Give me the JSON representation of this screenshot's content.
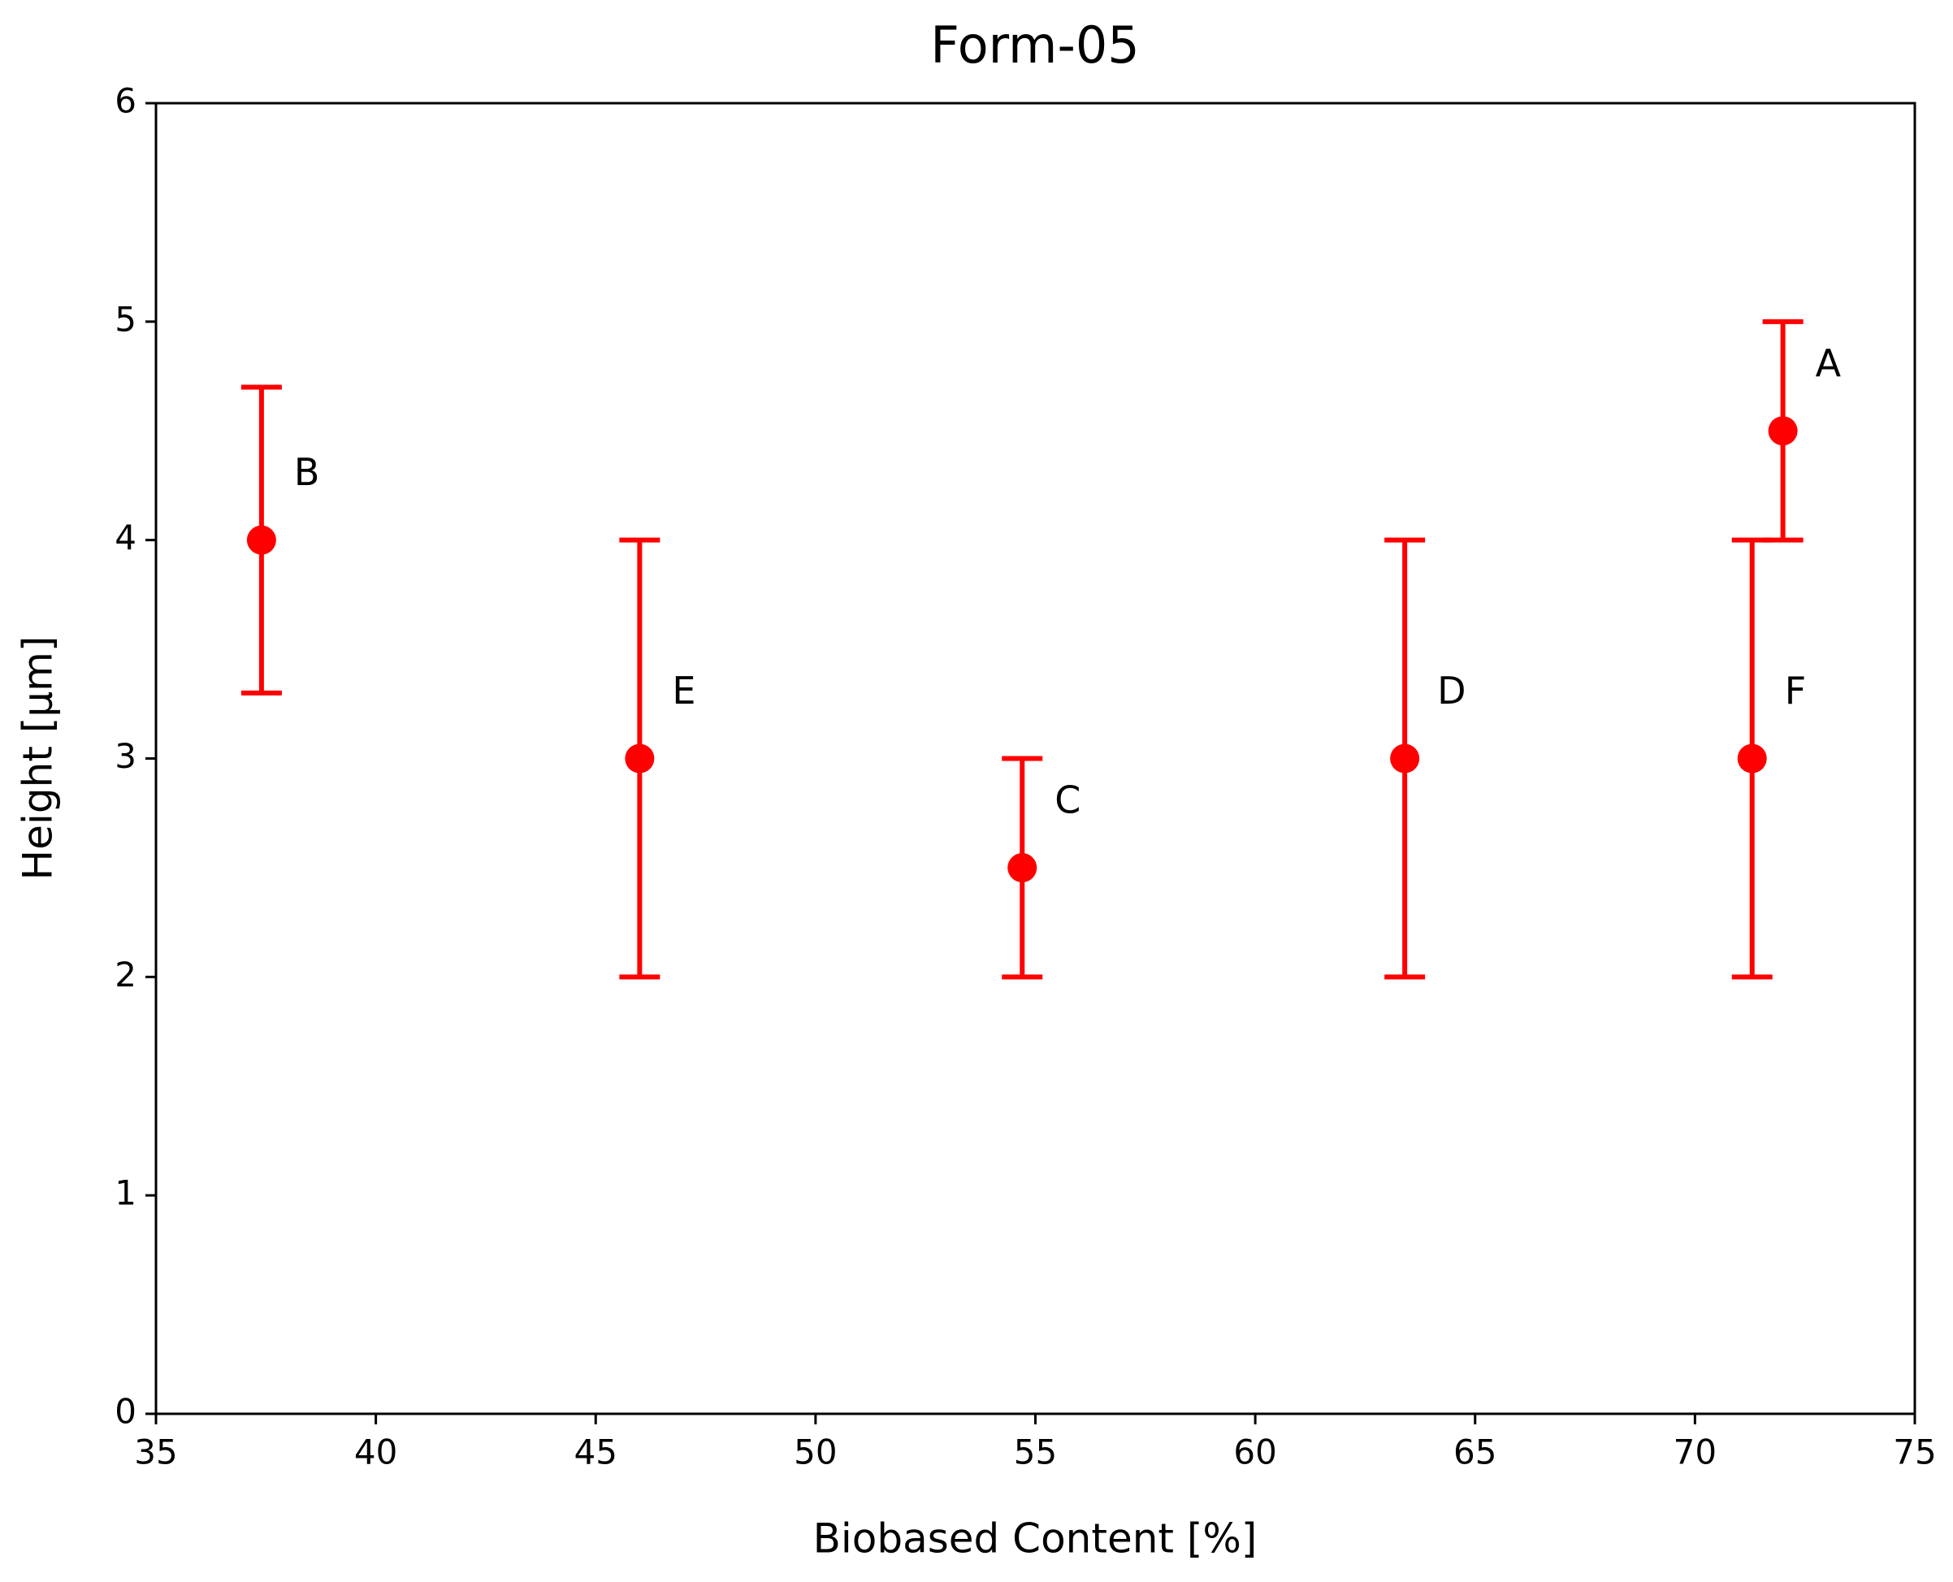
{
  "chart_data": {
    "type": "scatter",
    "title": "Form-05",
    "xlabel": "Biobased Content [%]",
    "ylabel": "Height [µm]",
    "x": [
      37.4,
      46,
      54.7,
      63.4,
      71.3,
      72
    ],
    "values": [
      4,
      3,
      2.5,
      3,
      3,
      4.5
    ],
    "errors": [
      0.7,
      1,
      0.5,
      1,
      1,
      0.5
    ],
    "labels": [
      "B",
      "E",
      "C",
      "D",
      "F",
      "A"
    ],
    "color": "#ff0000",
    "xlim": [
      35,
      75
    ],
    "xticks": [
      35,
      40,
      45,
      50,
      55,
      60,
      65,
      70,
      75
    ],
    "ylim": [
      0,
      6
    ],
    "yticks": [
      0,
      1,
      2,
      3,
      4,
      5,
      6
    ],
    "grid": false
  }
}
